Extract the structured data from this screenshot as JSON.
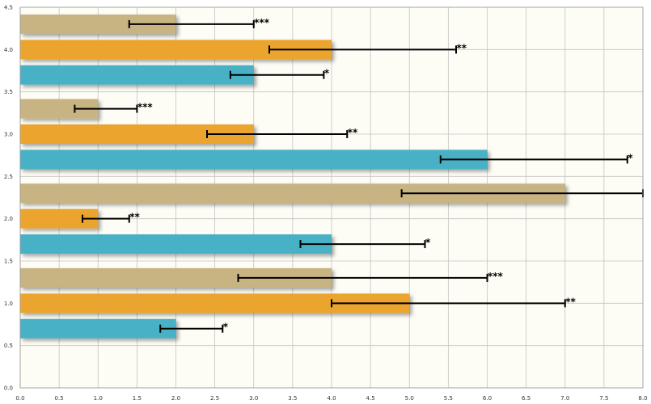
{
  "chart_data": {
    "type": "bar",
    "orientation": "horizontal",
    "title": "",
    "xlabel": "",
    "ylabel": "",
    "xlim": [
      0,
      8
    ],
    "ylim": [
      0,
      4.5
    ],
    "x_ticks": [
      "0.0",
      "0.5",
      "1.0",
      "1.5",
      "2.0",
      "2.5",
      "3.0",
      "3.5",
      "4.0",
      "4.5",
      "5.0",
      "5.5",
      "6.0",
      "6.5",
      "7.0",
      "7.5",
      "8.0"
    ],
    "y_ticks": [
      "0.0",
      "0.5",
      "1.0",
      "1.5",
      "2.0",
      "2.5",
      "3.0",
      "3.5",
      "4.0",
      "4.5"
    ],
    "grid": true,
    "legend": "none",
    "colors": {
      "tan": "#c8b382",
      "orange": "#eba52d",
      "teal": "#4ab1c6",
      "plot_background": "#fdfcf5",
      "grid": "#c4c4c4",
      "error_bar": "#000000"
    },
    "bars": [
      {
        "y": 0.7,
        "value": 2.0,
        "err_low": 1.8,
        "err_high": 2.6,
        "color": "teal",
        "label": "*"
      },
      {
        "y": 1.0,
        "value": 5.0,
        "err_low": 4.0,
        "err_high": 7.0,
        "color": "orange",
        "label": "**"
      },
      {
        "y": 1.3,
        "value": 4.0,
        "err_low": 2.8,
        "err_high": 6.0,
        "color": "tan",
        "label": "***"
      },
      {
        "y": 1.7,
        "value": 4.0,
        "err_low": 3.6,
        "err_high": 5.2,
        "color": "teal",
        "label": "*"
      },
      {
        "y": 2.0,
        "value": 1.0,
        "err_low": 0.8,
        "err_high": 1.4,
        "color": "orange",
        "label": "**"
      },
      {
        "y": 2.3,
        "value": 7.0,
        "err_low": 4.9,
        "err_high": 8.0,
        "color": "tan",
        "label": ""
      },
      {
        "y": 2.7,
        "value": 6.0,
        "err_low": 5.4,
        "err_high": 7.8,
        "color": "teal",
        "label": "*"
      },
      {
        "y": 3.0,
        "value": 3.0,
        "err_low": 2.4,
        "err_high": 4.2,
        "color": "orange",
        "label": "**"
      },
      {
        "y": 3.3,
        "value": 1.0,
        "err_low": 0.7,
        "err_high": 1.5,
        "color": "tan",
        "label": "***"
      },
      {
        "y": 3.7,
        "value": 3.0,
        "err_low": 2.7,
        "err_high": 3.9,
        "color": "teal",
        "label": "*"
      },
      {
        "y": 4.0,
        "value": 4.0,
        "err_low": 3.2,
        "err_high": 5.6,
        "color": "orange",
        "label": "**"
      },
      {
        "y": 4.3,
        "value": 2.0,
        "err_low": 1.4,
        "err_high": 3.0,
        "color": "tan",
        "label": "***"
      }
    ]
  }
}
